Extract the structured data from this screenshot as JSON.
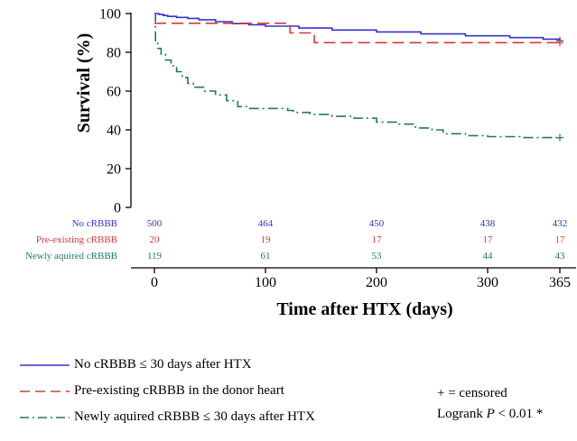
{
  "chart_data": {
    "type": "line",
    "subtype": "kaplan-meier-step",
    "xlabel": "Time after HTX (days)",
    "ylabel": "Survival (%)",
    "xlim": [
      0,
      365
    ],
    "ylim": [
      0,
      100
    ],
    "x_ticks": [
      "0",
      "100",
      "200",
      "300",
      "365"
    ],
    "x_tick_values": [
      0,
      100,
      200,
      300,
      365
    ],
    "y_ticks": [
      "0",
      "20",
      "40",
      "60",
      "80",
      "100"
    ],
    "y_tick_values": [
      0,
      20,
      40,
      60,
      80,
      100
    ],
    "grid": false,
    "series": [
      {
        "name": "No cRBBB ≤ 30 days after HTX",
        "color": "#3333cc",
        "dash": "solid",
        "points": [
          [
            0,
            100
          ],
          [
            4,
            99.6
          ],
          [
            8,
            99
          ],
          [
            12,
            98.5
          ],
          [
            20,
            98
          ],
          [
            30,
            97.5
          ],
          [
            40,
            96.8
          ],
          [
            55,
            95.8
          ],
          [
            70,
            94.8
          ],
          [
            85,
            94.2
          ],
          [
            100,
            93.5
          ],
          [
            130,
            92.5
          ],
          [
            160,
            91.5
          ],
          [
            200,
            90.5
          ],
          [
            240,
            89.5
          ],
          [
            280,
            88.5
          ],
          [
            320,
            87.6
          ],
          [
            350,
            86.8
          ],
          [
            365,
            86.2
          ]
        ]
      },
      {
        "name": "Pre-existing cRBBB in the donor heart",
        "color": "#d93a3a",
        "dash": "long-dash",
        "points": [
          [
            0,
            95
          ],
          [
            122,
            95
          ],
          [
            122,
            90
          ],
          [
            144,
            90
          ],
          [
            144,
            85
          ],
          [
            365,
            85
          ]
        ]
      },
      {
        "name": "Newly aquired cRBBB ≤ 30 days after HTX",
        "color": "#1f7a5c",
        "dash": "dash-dot",
        "points": [
          [
            0,
            100
          ],
          [
            1,
            86
          ],
          [
            3,
            82
          ],
          [
            6,
            79
          ],
          [
            10,
            76
          ],
          [
            15,
            73
          ],
          [
            20,
            70
          ],
          [
            25,
            67
          ],
          [
            30,
            64
          ],
          [
            35,
            62
          ],
          [
            45,
            60
          ],
          [
            55,
            58
          ],
          [
            65,
            55
          ],
          [
            75,
            52
          ],
          [
            85,
            51
          ],
          [
            115,
            51
          ],
          [
            120,
            50
          ],
          [
            125,
            49
          ],
          [
            140,
            48
          ],
          [
            160,
            47
          ],
          [
            180,
            46
          ],
          [
            200,
            44
          ],
          [
            220,
            43
          ],
          [
            235,
            41
          ],
          [
            250,
            40
          ],
          [
            260,
            38
          ],
          [
            280,
            37
          ],
          [
            300,
            36.5
          ],
          [
            330,
            36
          ],
          [
            365,
            36
          ]
        ]
      }
    ],
    "at_risk": [
      {
        "label": "No cRBBB",
        "color": "#3333cc",
        "values": [
          "500",
          "464",
          "450",
          "438",
          "432"
        ]
      },
      {
        "label": "Pre-existing cRBBB",
        "color": "#d93a3a",
        "values": [
          "20",
          "19",
          "17",
          "17",
          "17"
        ]
      },
      {
        "label": "Newly aquired cRBBB",
        "color": "#1f7a5c",
        "values": [
          "119",
          "61",
          "53",
          "44",
          "43"
        ]
      }
    ],
    "censor_marks": [
      {
        "series": 0,
        "x": 365,
        "y": 86
      },
      {
        "series": 1,
        "x": 365,
        "y": 85
      },
      {
        "series": 2,
        "x": 365,
        "y": 36
      }
    ],
    "legend_position": "bottom-left"
  },
  "notes": {
    "censored": "+ = censored",
    "logrank_prefix": "Logrank ",
    "logrank_p": "P",
    "logrank_suffix": " < 0.01 *"
  }
}
